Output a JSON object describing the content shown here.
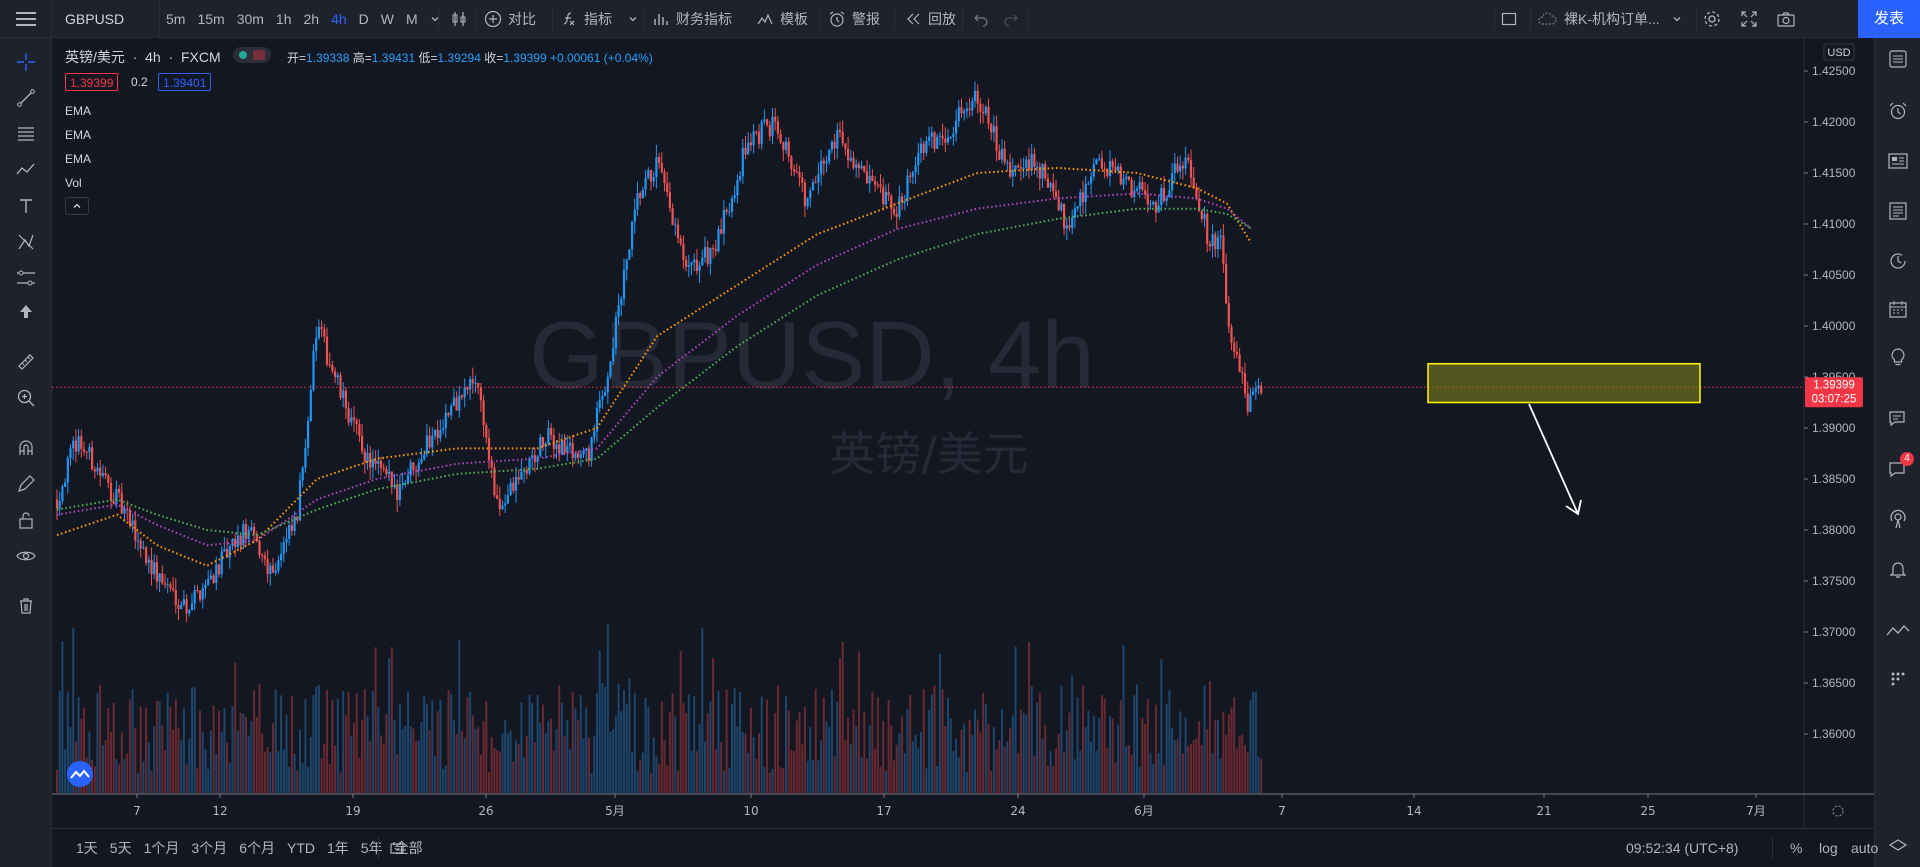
{
  "topbar": {
    "symbol": "GBPUSD",
    "intervals": [
      "5m",
      "15m",
      "30m",
      "1h",
      "2h",
      "4h",
      "D",
      "W",
      "M"
    ],
    "active_interval": "4h",
    "compare_label": "对比",
    "indicators_label": "指标",
    "financials_label": "财务指标",
    "templates_label": "模板",
    "alert_label": "警报",
    "replay_label": "回放",
    "layout_name": "裸K-机构订单...",
    "publish_label": "发表"
  },
  "legend": {
    "title": "英镑/美元",
    "interval": "4h",
    "exchange": "FXCM",
    "open_label": "开=",
    "open": "1.39338",
    "high_label": "高=",
    "high": "1.39431",
    "low_label": "低=",
    "low": "1.39294",
    "close_label": "收=",
    "close": "1.39399",
    "change": "+0.00061 (+0.04%)",
    "bid": "1.39399",
    "spread": "0.2",
    "ask": "1.39401",
    "indicators": [
      "EMA",
      "EMA",
      "EMA",
      "Vol"
    ]
  },
  "watermark": {
    "line1": "GBPUSD, 4h",
    "line2": "英镑/美元"
  },
  "price_axis": {
    "currency": "USD",
    "labels": [
      "1.42500",
      "1.42000",
      "1.41500",
      "1.41000",
      "1.40500",
      "1.40000",
      "1.39500",
      "1.39000",
      "1.38500",
      "1.38000",
      "1.37500",
      "1.37000",
      "1.36500",
      "1.36000"
    ],
    "last_price": "1.39399",
    "countdown": "03:07:25"
  },
  "time_axis": {
    "labels": [
      "7",
      "12",
      "19",
      "26",
      "5月",
      "10",
      "17",
      "24",
      "6月",
      "7",
      "14",
      "21",
      "25",
      "7月"
    ]
  },
  "bottombar": {
    "ranges": [
      "1天",
      "5天",
      "1个月",
      "3个月",
      "6个月",
      "YTD",
      "1年",
      "5年",
      "全部"
    ],
    "clock": "09:52:34 (UTC+8)",
    "pct_label": "%",
    "log_label": "log",
    "auto_label": "auto"
  },
  "rightbar": {
    "notification_count": "4"
  },
  "colors": {
    "up": "#2196f3",
    "down": "#ef5350",
    "ema_fast": "#ff9800",
    "ema_mid": "#ab47bc",
    "ema_slow": "#4caf50",
    "zone_fill": "#8a8a1e",
    "zone_border": "#f5f000",
    "accent": "#2962ff",
    "price_tag": "#f23645"
  },
  "chart_data": {
    "type": "candlestick",
    "symbol": "GBPUSD",
    "interval": "4h",
    "ylim": [
      1.358,
      1.43
    ],
    "anchors": [
      [
        0,
        1.383
      ],
      [
        20,
        1.389
      ],
      [
        60,
        1.383
      ],
      [
        100,
        1.3755
      ],
      [
        130,
        1.3725
      ],
      [
        190,
        1.38
      ],
      [
        215,
        1.376
      ],
      [
        240,
        1.381
      ],
      [
        260,
        1.4
      ],
      [
        285,
        1.393
      ],
      [
        310,
        1.387
      ],
      [
        340,
        1.384
      ],
      [
        380,
        1.39
      ],
      [
        420,
        1.395
      ],
      [
        440,
        1.382
      ],
      [
        455,
        1.384
      ],
      [
        490,
        1.389
      ],
      [
        530,
        1.387
      ],
      [
        550,
        1.395
      ],
      [
        580,
        1.412
      ],
      [
        600,
        1.416
      ],
      [
        630,
        1.405
      ],
      [
        660,
        1.408
      ],
      [
        690,
        1.418
      ],
      [
        720,
        1.42
      ],
      [
        750,
        1.412
      ],
      [
        780,
        1.419
      ],
      [
        810,
        1.414
      ],
      [
        840,
        1.411
      ],
      [
        860,
        1.417
      ],
      [
        890,
        1.419
      ],
      [
        920,
        1.423
      ],
      [
        950,
        1.415
      ],
      [
        980,
        1.416
      ],
      [
        1010,
        1.41
      ],
      [
        1040,
        1.416
      ],
      [
        1070,
        1.414
      ],
      [
        1100,
        1.412
      ],
      [
        1130,
        1.417
      ],
      [
        1150,
        1.409
      ],
      [
        1165,
        1.408
      ],
      [
        1170,
        1.4
      ],
      [
        1180,
        1.397
      ],
      [
        1190,
        1.392
      ],
      [
        1205,
        1.394
      ]
    ],
    "ema_fast_anchors": [
      [
        0,
        1.3795
      ],
      [
        60,
        1.3815
      ],
      [
        100,
        1.3785
      ],
      [
        150,
        1.3765
      ],
      [
        200,
        1.379
      ],
      [
        260,
        1.385
      ],
      [
        320,
        1.387
      ],
      [
        400,
        1.388
      ],
      [
        480,
        1.388
      ],
      [
        540,
        1.39
      ],
      [
        600,
        1.399
      ],
      [
        680,
        1.404
      ],
      [
        760,
        1.409
      ],
      [
        840,
        1.412
      ],
      [
        920,
        1.415
      ],
      [
        1000,
        1.4155
      ],
      [
        1080,
        1.415
      ],
      [
        1140,
        1.4135
      ],
      [
        1170,
        1.412
      ],
      [
        1195,
        1.408
      ]
    ],
    "ema_mid_anchors": [
      [
        0,
        1.3815
      ],
      [
        60,
        1.3825
      ],
      [
        100,
        1.3805
      ],
      [
        150,
        1.3785
      ],
      [
        200,
        1.379
      ],
      [
        260,
        1.383
      ],
      [
        320,
        1.385
      ],
      [
        400,
        1.3865
      ],
      [
        480,
        1.387
      ],
      [
        540,
        1.388
      ],
      [
        600,
        1.395
      ],
      [
        680,
        1.401
      ],
      [
        760,
        1.406
      ],
      [
        840,
        1.4095
      ],
      [
        920,
        1.4115
      ],
      [
        1000,
        1.4125
      ],
      [
        1080,
        1.413
      ],
      [
        1140,
        1.4125
      ],
      [
        1170,
        1.4115
      ],
      [
        1195,
        1.4095
      ]
    ],
    "ema_slow_anchors": [
      [
        0,
        1.382
      ],
      [
        60,
        1.383
      ],
      [
        100,
        1.3815
      ],
      [
        150,
        1.38
      ],
      [
        200,
        1.3795
      ],
      [
        260,
        1.382
      ],
      [
        320,
        1.384
      ],
      [
        400,
        1.3855
      ],
      [
        480,
        1.386
      ],
      [
        540,
        1.387
      ],
      [
        600,
        1.392
      ],
      [
        680,
        1.398
      ],
      [
        760,
        1.403
      ],
      [
        840,
        1.4065
      ],
      [
        920,
        1.409
      ],
      [
        1000,
        1.4105
      ],
      [
        1080,
        1.4115
      ],
      [
        1140,
        1.4115
      ],
      [
        1170,
        1.411
      ],
      [
        1195,
        1.4095
      ]
    ],
    "zone": {
      "price_top": 1.3963,
      "price_bottom": 1.3925
    },
    "last_price": 1.39399,
    "annotations": [
      "yellow rectangle supply zone",
      "white arrow pointing down"
    ]
  }
}
